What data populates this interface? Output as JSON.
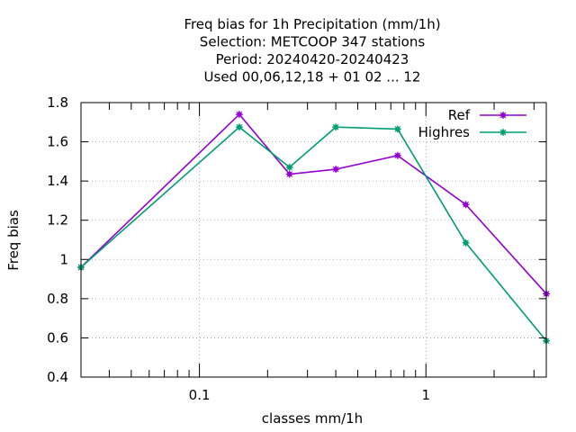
{
  "chart_data": {
    "type": "line",
    "title_lines": [
      "Freq bias  for 1h Precipitation (mm/1h)",
      "Selection: METCOOP    347 stations",
      "Period: 20240420-20240423",
      "Used  00,06,12,18 + 01 02 ... 12"
    ],
    "xlabel": "classes mm/1h",
    "ylabel": "Freq bias",
    "x_scale": "log",
    "xlim": [
      0.03,
      3.4
    ],
    "ylim": [
      0.4,
      1.8
    ],
    "x_tick_labels": [
      {
        "value": 0.1,
        "label": "0.1"
      },
      {
        "value": 1,
        "label": "1"
      }
    ],
    "y_tick_labels": [
      {
        "value": 0.4,
        "label": "0.4"
      },
      {
        "value": 0.6,
        "label": "0.6"
      },
      {
        "value": 0.8,
        "label": "0.8"
      },
      {
        "value": 1.0,
        "label": "1"
      },
      {
        "value": 1.2,
        "label": "1.2"
      },
      {
        "value": 1.4,
        "label": "1.4"
      },
      {
        "value": 1.6,
        "label": "1.6"
      },
      {
        "value": 1.8,
        "label": "1.8"
      }
    ],
    "grid": true,
    "legend_position": "top-right",
    "series": [
      {
        "name": "Ref",
        "color": "#9400d3",
        "points": [
          {
            "x": 0.03,
            "y": 0.96
          },
          {
            "x": 0.15,
            "y": 1.74
          },
          {
            "x": 0.25,
            "y": 1.435
          },
          {
            "x": 0.4,
            "y": 1.46
          },
          {
            "x": 0.75,
            "y": 1.53
          },
          {
            "x": 1.5,
            "y": 1.28
          },
          {
            "x": 3.4,
            "y": 0.825
          }
        ]
      },
      {
        "name": "Highres",
        "color": "#009e73",
        "points": [
          {
            "x": 0.03,
            "y": 0.96
          },
          {
            "x": 0.15,
            "y": 1.675
          },
          {
            "x": 0.25,
            "y": 1.47
          },
          {
            "x": 0.4,
            "y": 1.675
          },
          {
            "x": 0.75,
            "y": 1.665
          },
          {
            "x": 1.5,
            "y": 1.085
          },
          {
            "x": 3.4,
            "y": 0.585
          }
        ]
      }
    ]
  }
}
